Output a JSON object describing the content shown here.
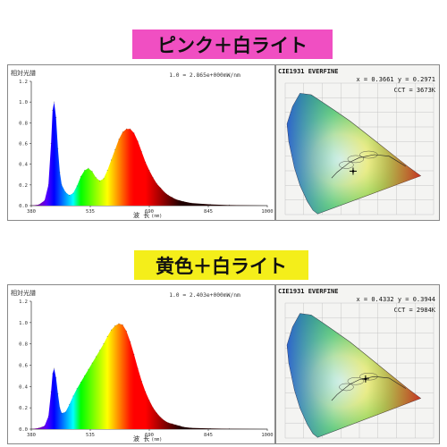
{
  "banners": {
    "pink": {
      "text": "ピンク＋白ライト",
      "bg": "#f04fc2"
    },
    "yellow": {
      "text": "黄色＋白ライト",
      "bg": "#f4ee1a"
    }
  },
  "chart_data": [
    {
      "type": "area",
      "title": "相対光譜",
      "note": "1.0 = 2.865e+000mW/nm",
      "xlabel": "波 长",
      "xunit": "(nm)",
      "ylim": [
        0,
        1.2
      ],
      "xlim": [
        380,
        1000
      ],
      "xticks": [
        "380",
        "535",
        "690",
        "845",
        "1000"
      ],
      "yticks": [
        "0.0",
        "0.2",
        "0.4",
        "0.6",
        "0.8",
        "1.0",
        "1.2"
      ],
      "x": [
        380,
        400,
        415,
        425,
        432,
        436,
        440,
        445,
        450,
        455,
        460,
        470,
        480,
        490,
        500,
        510,
        520,
        530,
        540,
        550,
        560,
        570,
        580,
        590,
        600,
        610,
        620,
        630,
        640,
        650,
        660,
        670,
        680,
        690,
        700,
        710,
        720,
        730,
        740,
        750,
        760,
        770,
        780,
        800,
        850,
        900,
        1000
      ],
      "values": [
        0,
        0.01,
        0.05,
        0.2,
        0.6,
        0.92,
        1.0,
        0.85,
        0.55,
        0.32,
        0.2,
        0.13,
        0.1,
        0.12,
        0.19,
        0.28,
        0.34,
        0.36,
        0.33,
        0.27,
        0.24,
        0.26,
        0.34,
        0.44,
        0.54,
        0.64,
        0.71,
        0.74,
        0.74,
        0.7,
        0.62,
        0.52,
        0.42,
        0.34,
        0.27,
        0.21,
        0.17,
        0.13,
        0.1,
        0.08,
        0.06,
        0.05,
        0.04,
        0.025,
        0.012,
        0.005,
        0
      ]
    },
    {
      "type": "area",
      "title": "相対光譜",
      "note": "1.0 = 2.403e+000mW/nm",
      "xlabel": "波 长",
      "xunit": "(nm)",
      "ylim": [
        0,
        1.2
      ],
      "xlim": [
        380,
        1000
      ],
      "xticks": [
        "380",
        "535",
        "690",
        "845",
        "1000"
      ],
      "yticks": [
        "0.0",
        "0.2",
        "0.4",
        "0.6",
        "0.8",
        "1.0",
        "1.2"
      ],
      "x": [
        380,
        400,
        415,
        425,
        432,
        436,
        440,
        445,
        450,
        455,
        460,
        470,
        480,
        490,
        500,
        510,
        520,
        530,
        540,
        550,
        560,
        570,
        580,
        590,
        600,
        610,
        620,
        630,
        640,
        650,
        660,
        670,
        680,
        690,
        700,
        710,
        720,
        730,
        740,
        750,
        760,
        770,
        780,
        800,
        850,
        900,
        1000
      ],
      "values": [
        0,
        0.01,
        0.03,
        0.12,
        0.35,
        0.52,
        0.57,
        0.48,
        0.33,
        0.2,
        0.15,
        0.16,
        0.23,
        0.31,
        0.38,
        0.44,
        0.5,
        0.56,
        0.62,
        0.68,
        0.74,
        0.8,
        0.87,
        0.93,
        0.97,
        0.99,
        0.98,
        0.92,
        0.82,
        0.7,
        0.57,
        0.45,
        0.35,
        0.27,
        0.2,
        0.15,
        0.11,
        0.08,
        0.06,
        0.05,
        0.04,
        0.03,
        0.02,
        0.012,
        0.006,
        0.003,
        0
      ]
    },
    {
      "type": "scatter",
      "title": "CIE1931  EVERFINE",
      "readout": "x = 0.3661 y = 0.2971",
      "cct": "CCT = 3673K",
      "point": {
        "x": 0.3661,
        "y": 0.2971
      }
    },
    {
      "type": "scatter",
      "title": "CIE1931  EVERFINE",
      "readout": "x = 0.4332 y = 0.3944",
      "cct": "CCT = 2984K",
      "point": {
        "x": 0.4332,
        "y": 0.3944
      }
    }
  ]
}
